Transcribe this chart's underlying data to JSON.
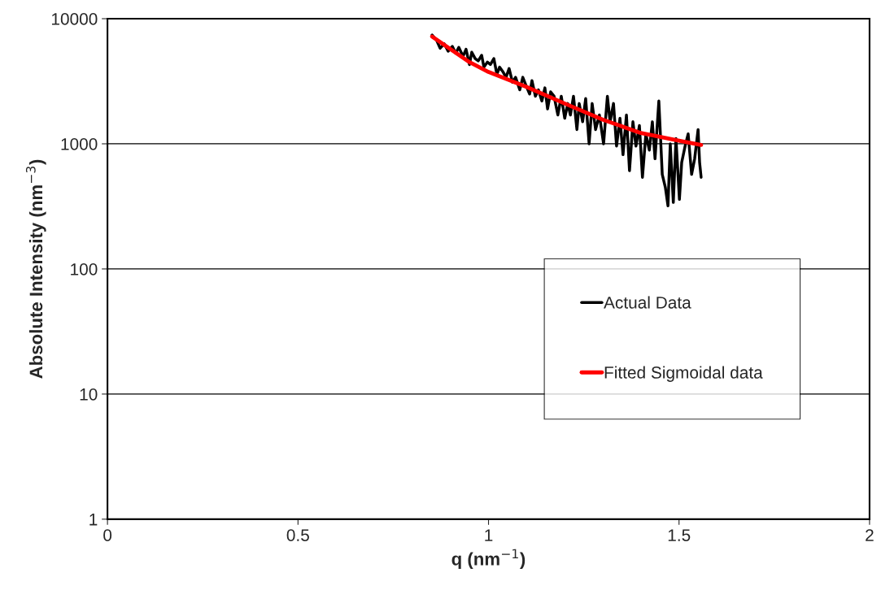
{
  "chart_data": {
    "type": "line",
    "xlabel": "q (nm$^{−1}$)",
    "ylabel": "Absolute Intensity (nm$^{−3}$)",
    "xlim": [
      0,
      2
    ],
    "xticks": [
      0,
      0.5,
      1,
      1.5,
      2
    ],
    "ylim": [
      1,
      10000
    ],
    "yticks": [
      1,
      10,
      100,
      1000,
      10000
    ],
    "log": "y",
    "grid": "y",
    "legend": "right",
    "line_style": "solid",
    "marker": "none",
    "series": [
      {
        "name": "Actual Data",
        "color": "#000000",
        "x": [
          0.852,
          0.864,
          0.873,
          0.884,
          0.894,
          0.905,
          0.914,
          0.922,
          0.933,
          0.941,
          0.95,
          0.956,
          0.965,
          0.973,
          0.982,
          0.988,
          0.997,
          1.005,
          1.014,
          1.022,
          1.029,
          1.037,
          1.046,
          1.054,
          1.063,
          1.071,
          1.082,
          1.09,
          1.099,
          1.108,
          1.114,
          1.123,
          1.131,
          1.14,
          1.148,
          1.155,
          1.163,
          1.172,
          1.182,
          1.191,
          1.2,
          1.208,
          1.215,
          1.223,
          1.232,
          1.238,
          1.247,
          1.255,
          1.264,
          1.272,
          1.281,
          1.291,
          1.302,
          1.312,
          1.319,
          1.328,
          1.336,
          1.345,
          1.353,
          1.362,
          1.37,
          1.379,
          1.387,
          1.396,
          1.404,
          1.413,
          1.422,
          1.43,
          1.437,
          1.447,
          1.456,
          1.464,
          1.471,
          1.477,
          1.485,
          1.492,
          1.501,
          1.507,
          1.516,
          1.524,
          1.533,
          1.541,
          1.55,
          1.554,
          1.558
        ],
        "values": [
          7400,
          6700,
          5800,
          6300,
          5500,
          6000,
          5300,
          5900,
          5000,
          5700,
          4300,
          5400,
          4800,
          4600,
          5100,
          4100,
          4500,
          4300,
          4800,
          3600,
          4100,
          3800,
          3400,
          4000,
          3100,
          3400,
          2700,
          3400,
          2900,
          2500,
          3200,
          2400,
          2700,
          2200,
          2800,
          1900,
          2600,
          2400,
          1700,
          2400,
          1600,
          2100,
          1700,
          2400,
          1300,
          2100,
          1500,
          2300,
          1000,
          2100,
          1300,
          1700,
          1000,
          2400,
          1500,
          2100,
          960,
          1600,
          820,
          1700,
          610,
          1500,
          960,
          1400,
          540,
          1200,
          890,
          1500,
          760,
          2200,
          570,
          450,
          320,
          1000,
          340,
          1100,
          360,
          710,
          960,
          1200,
          570,
          760,
          1300,
          710,
          540
        ]
      },
      {
        "name": "Fitted Sigmoidal data",
        "color": "#ff0000",
        "x": [
          0.852,
          0.95,
          1.0,
          1.1,
          1.2,
          1.3,
          1.4,
          1.5,
          1.558
        ],
        "values": [
          7200,
          4500,
          3750,
          2850,
          2100,
          1560,
          1220,
          1060,
          980
        ]
      }
    ]
  }
}
